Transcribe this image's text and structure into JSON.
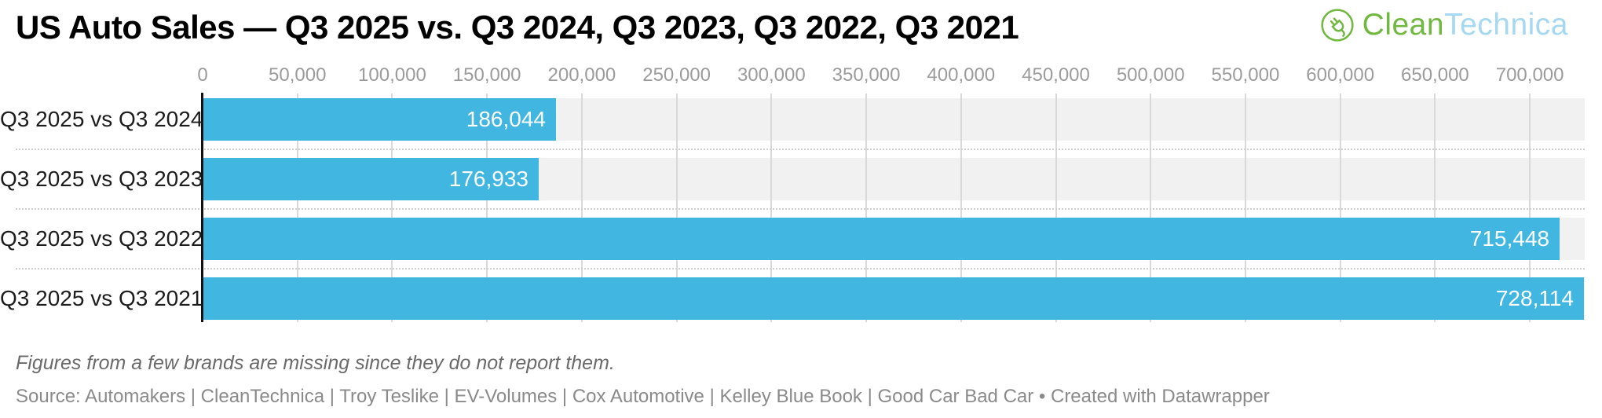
{
  "title": "US Auto Sales — Q3 2025 vs. Q3 2024, Q3 2023, Q3 2022, Q3 2021",
  "logo": {
    "text_clean": "Clean",
    "text_technica": "Technica",
    "icon": "plug-circle-icon"
  },
  "chart_data": {
    "type": "bar",
    "orientation": "horizontal",
    "title": "US Auto Sales — Q3 2025 vs. Q3 2024, Q3 2023, Q3 2022, Q3 2021",
    "categories": [
      "Q3 2025 vs Q3 2024",
      "Q3 2025 vs Q3 2023",
      "Q3 2025 vs Q3 2022",
      "Q3 2025 vs Q3 2021"
    ],
    "values": [
      186044,
      176933,
      715448,
      728114
    ],
    "value_labels": [
      "186,044",
      "176,933",
      "715,448",
      "728,114"
    ],
    "x_axis": {
      "min": 0,
      "max": 700000,
      "tick_interval": 50000,
      "tick_labels": [
        "0",
        "50,000",
        "100,000",
        "150,000",
        "200,000",
        "250,000",
        "300,000",
        "350,000",
        "400,000",
        "450,000",
        "500,000",
        "550,000",
        "600,000",
        "650,000",
        "700,000"
      ],
      "position": "top"
    },
    "plot_value_max": 728114,
    "grid": true,
    "legend": "none",
    "row_separators": "dotted"
  },
  "footnote": "Figures from a few brands are missing since they do not report them.",
  "source": "Source: Automakers | CleanTechnica | Troy Teslike | EV-Volumes | Cox Automotive | Kelley Blue Book | Good Car Bad Car • Created with Datawrapper",
  "colors": {
    "bar": "#41b6e1",
    "band": "#f1f1f1",
    "gridline": "#d9d9d9",
    "separator": "#cfcfcf",
    "axis_line": "#111111",
    "tick_label": "#9b9b9b",
    "row_label": "#1c1c1c",
    "value_label": "#ffffff",
    "title": "#000000",
    "footnote": "#6a6a6a",
    "source": "#8a8a8a",
    "logo_green": "#72b840",
    "logo_blue": "#a6d8f2"
  }
}
